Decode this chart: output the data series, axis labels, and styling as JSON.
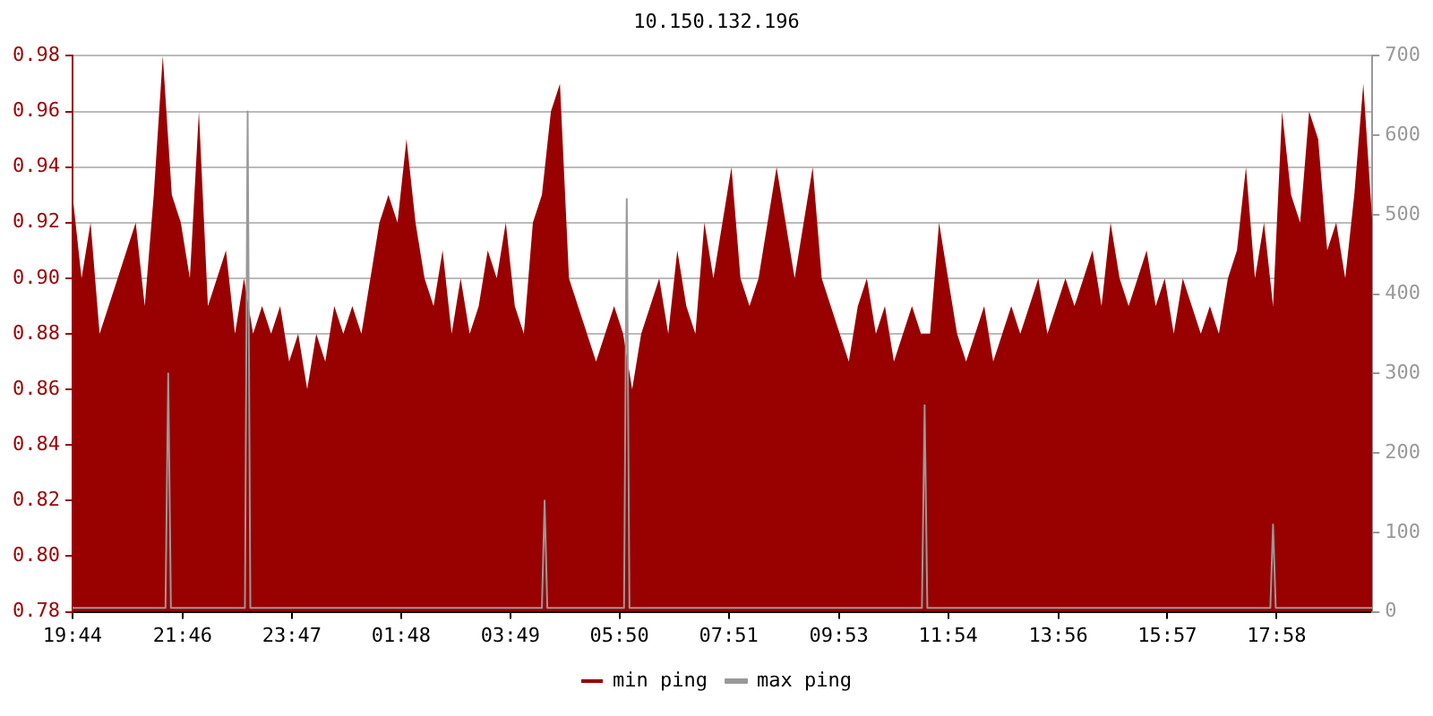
{
  "chart_data": {
    "type": "area",
    "title": "10.150.132.196",
    "x": [
      "--01-01T19:44",
      "--01-01T19:54",
      "--01-01T20:04",
      "--01-01T20:14",
      "--01-01T20:24",
      "--01-01T20:34",
      "--01-01T20:44",
      "--01-01T20:54",
      "--01-01T21:04",
      "--01-01T21:14",
      "--01-01T21:24",
      "--01-01T21:34",
      "--01-01T21:44",
      "--01-01T21:54",
      "--01-01T22:04",
      "--01-01T22:14",
      "--01-01T22:24",
      "--01-01T22:34",
      "--01-01T22:44",
      "--01-01T22:54",
      "--01-01T23:04",
      "--01-01T23:14",
      "--01-01T23:24",
      "--01-01T23:34",
      "--01-01T23:44",
      "--01-01T23:54",
      "--01-02T00:04",
      "--01-02T00:14",
      "--01-02T00:24",
      "--01-02T00:34",
      "--01-02T00:44",
      "--01-02T00:54",
      "--01-02T01:04",
      "--01-02T01:14",
      "--01-02T01:24",
      "--01-02T01:34",
      "--01-02T01:44",
      "--01-02T01:54",
      "--01-02T02:04",
      "--01-02T02:14",
      "--01-02T02:24",
      "--01-02T02:34",
      "--01-02T02:44",
      "--01-02T02:54",
      "--01-02T03:04",
      "--01-02T03:14",
      "--01-02T03:24",
      "--01-02T03:34",
      "--01-02T03:44",
      "--01-02T03:54",
      "--01-02T04:04",
      "--01-02T04:14",
      "--01-02T04:24",
      "--01-02T04:34",
      "--01-02T04:44",
      "--01-02T04:54",
      "--01-02T05:04",
      "--01-02T05:14",
      "--01-02T05:24",
      "--01-02T05:34",
      "--01-02T05:44",
      "--01-02T05:54",
      "--01-02T06:04",
      "--01-02T06:14",
      "--01-02T06:24",
      "--01-02T06:34",
      "--01-02T06:44",
      "--01-02T06:54",
      "--01-02T07:04",
      "--01-02T07:14",
      "--01-02T07:24",
      "--01-02T07:34",
      "--01-02T07:44",
      "--01-02T07:54",
      "--01-02T08:04",
      "--01-02T08:14",
      "--01-02T08:24",
      "--01-02T08:34",
      "--01-02T08:44",
      "--01-02T08:54",
      "--01-02T09:04",
      "--01-02T09:14",
      "--01-02T09:24",
      "--01-02T09:34",
      "--01-02T09:44",
      "--01-02T09:54",
      "--01-02T10:04",
      "--01-02T10:14",
      "--01-02T10:24",
      "--01-02T10:34",
      "--01-02T10:44",
      "--01-02T10:54",
      "--01-02T11:04",
      "--01-02T11:14",
      "--01-02T11:24",
      "--01-02T11:34",
      "--01-02T11:44",
      "--01-02T11:54",
      "--01-02T12:04",
      "--01-02T12:14",
      "--01-02T12:24",
      "--01-02T12:34",
      "--01-02T12:44",
      "--01-02T12:54",
      "--01-02T13:04",
      "--01-02T13:14",
      "--01-02T13:24",
      "--01-02T13:34",
      "--01-02T13:44",
      "--01-02T13:54",
      "--01-02T14:04",
      "--01-02T14:14",
      "--01-02T14:24",
      "--01-02T14:34",
      "--01-02T14:44",
      "--01-02T14:54",
      "--01-02T15:04",
      "--01-02T15:14",
      "--01-02T15:24",
      "--01-02T15:34",
      "--01-02T15:44",
      "--01-02T15:54",
      "--01-02T16:04",
      "--01-02T16:14",
      "--01-02T16:24",
      "--01-02T16:34",
      "--01-02T16:44",
      "--01-02T16:54",
      "--01-02T17:04",
      "--01-02T17:14",
      "--01-02T17:24",
      "--01-02T17:34",
      "--01-02T17:44",
      "--01-02T17:54",
      "--01-02T18:04",
      "--01-02T18:14",
      "--01-02T18:24",
      "--01-02T18:34",
      "--01-02T18:44",
      "--01-02T18:54",
      "--01-02T19:04",
      "--01-02T19:14",
      "--01-02T19:24",
      "--01-02T19:34",
      "--01-02T19:44"
    ],
    "series": [
      {
        "name": "min ping",
        "color": "#990000",
        "values": [
          0.93,
          0.9,
          0.92,
          0.88,
          0.89,
          0.9,
          0.91,
          0.92,
          0.89,
          0.93,
          0.98,
          0.93,
          0.92,
          0.9,
          0.96,
          0.89,
          0.9,
          0.91,
          0.88,
          0.9,
          0.88,
          0.89,
          0.88,
          0.89,
          0.87,
          0.88,
          0.86,
          0.88,
          0.87,
          0.89,
          0.88,
          0.89,
          0.88,
          0.9,
          0.92,
          0.93,
          0.92,
          0.95,
          0.92,
          0.9,
          0.89,
          0.91,
          0.88,
          0.9,
          0.88,
          0.89,
          0.91,
          0.9,
          0.92,
          0.89,
          0.88,
          0.92,
          0.93,
          0.96,
          0.97,
          0.9,
          0.89,
          0.88,
          0.87,
          0.88,
          0.89,
          0.88,
          0.86,
          0.88,
          0.89,
          0.9,
          0.88,
          0.91,
          0.89,
          0.88,
          0.92,
          0.9,
          0.92,
          0.94,
          0.9,
          0.89,
          0.9,
          0.92,
          0.94,
          0.92,
          0.9,
          0.92,
          0.94,
          0.9,
          0.89,
          0.88,
          0.87,
          0.89,
          0.9,
          0.88,
          0.89,
          0.87,
          0.88,
          0.89,
          0.88,
          0.88,
          0.92,
          0.9,
          0.88,
          0.87,
          0.88,
          0.89,
          0.87,
          0.88,
          0.89,
          0.88,
          0.89,
          0.9,
          0.88,
          0.89,
          0.9,
          0.89,
          0.9,
          0.91,
          0.89,
          0.92,
          0.9,
          0.89,
          0.9,
          0.91,
          0.89,
          0.9,
          0.88,
          0.9,
          0.89,
          0.88,
          0.89,
          0.88,
          0.9,
          0.91,
          0.94,
          0.9,
          0.92,
          0.89,
          0.96,
          0.93,
          0.92,
          0.96,
          0.95,
          0.91,
          0.92,
          0.9,
          0.93,
          0.97,
          0.92
        ]
      },
      {
        "name": "max ping",
        "color": "#999999",
        "type": "line",
        "axis": "y2",
        "x": [
          "--01-01T19:44",
          "--01-01T21:27",
          "--01-01T21:30",
          "--01-01T21:33",
          "--01-01T22:55",
          "--01-01T22:58",
          "--01-01T23:01",
          "--01-02T04:24",
          "--01-02T04:27",
          "--01-02T04:30",
          "--01-02T05:55",
          "--01-02T05:58",
          "--01-02T06:01",
          "--01-02T11:25",
          "--01-02T11:28",
          "--01-02T11:31",
          "--01-02T17:51",
          "--01-02T17:54",
          "--01-02T17:57",
          "--01-02T19:44"
        ],
        "values": [
          5,
          5,
          300,
          5,
          5,
          630,
          5,
          5,
          140,
          5,
          5,
          520,
          5,
          5,
          260,
          5,
          5,
          110,
          5,
          5
        ]
      }
    ],
    "xlim": [
      "--01-01T19:44",
      "--01-02T19:44"
    ],
    "xticks": [
      {
        "value": "--01-01T19:44",
        "label": "19:44"
      },
      {
        "value": "--01-01T21:46",
        "label": "21:46"
      },
      {
        "value": "--01-01T23:47",
        "label": "23:47"
      },
      {
        "value": "--01-02T01:48",
        "label": "01:48"
      },
      {
        "value": "--01-02T03:49",
        "label": "03:49"
      },
      {
        "value": "--01-02T05:50",
        "label": "05:50"
      },
      {
        "value": "--01-02T07:51",
        "label": "07:51"
      },
      {
        "value": "--01-02T09:53",
        "label": "09:53"
      },
      {
        "value": "--01-02T11:54",
        "label": "11:54"
      },
      {
        "value": "--01-02T13:56",
        "label": "13:56"
      },
      {
        "value": "--01-02T15:57",
        "label": "15:57"
      },
      {
        "value": "--01-02T17:58",
        "label": "17:58"
      }
    ],
    "ylim": [
      0.78,
      0.98
    ],
    "yticks": [
      {
        "value": 0.78,
        "label": "0.78"
      },
      {
        "value": 0.8,
        "label": "0.80"
      },
      {
        "value": 0.82,
        "label": "0.82"
      },
      {
        "value": 0.84,
        "label": "0.84"
      },
      {
        "value": 0.86,
        "label": "0.86"
      },
      {
        "value": 0.88,
        "label": "0.88"
      },
      {
        "value": 0.9,
        "label": "0.90"
      },
      {
        "value": 0.92,
        "label": "0.92"
      },
      {
        "value": 0.94,
        "label": "0.94"
      },
      {
        "value": 0.96,
        "label": "0.96"
      },
      {
        "value": 0.98,
        "label": "0.98"
      }
    ],
    "y2lim": [
      0,
      700
    ],
    "y2ticks": [
      0,
      100,
      200,
      300,
      400,
      500,
      600,
      700
    ],
    "grid": "y",
    "legend": "bottom"
  }
}
